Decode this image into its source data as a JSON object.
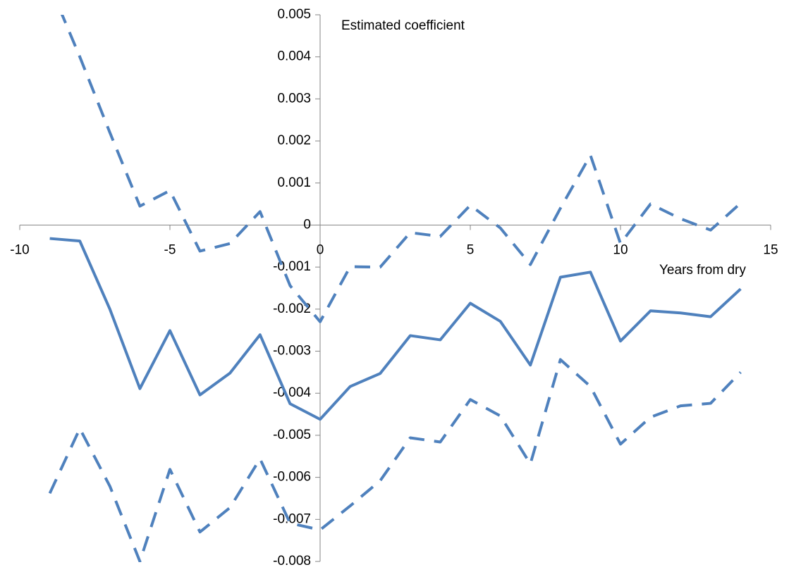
{
  "chart_data": {
    "type": "line",
    "y_label": "Estimated coefficient",
    "x_label": "Years from dry",
    "x": [
      -9,
      -8,
      -7,
      -6,
      -5,
      -4,
      -3,
      -2,
      -1,
      0,
      1,
      2,
      3,
      4,
      5,
      6,
      7,
      8,
      9,
      10,
      11,
      12,
      13,
      14
    ],
    "series": [
      {
        "color": "#4f81bd",
        "style": "solid",
        "values": [
          -0.00032,
          -0.00038,
          -0.002,
          -0.00389,
          -0.00251,
          -0.00404,
          -0.00352,
          -0.00261,
          -0.00425,
          -0.00462,
          -0.00384,
          -0.00353,
          -0.00263,
          -0.00273,
          -0.00186,
          -0.00229,
          -0.00333,
          -0.00124,
          -0.00112,
          -0.00276,
          -0.00204,
          -0.00209,
          -0.00218,
          -0.00152
        ]
      },
      {
        "color": "#4f81bd",
        "style": "dashed",
        "values": [
          0.0057,
          0.004,
          0.0022,
          0.00045,
          0.00082,
          -0.00062,
          -0.00044,
          0.00032,
          -0.00144,
          -0.0023,
          -0.00099,
          -0.001,
          -0.00018,
          -0.00027,
          0.00047,
          -7e-05,
          -0.00094,
          0.0004,
          0.00166,
          -0.00044,
          0.0005,
          0.00015,
          -0.00012,
          0.00052
        ]
      },
      {
        "color": "#4f81bd",
        "style": "dashed",
        "values": [
          -0.00638,
          -0.00484,
          -0.00621,
          -0.008,
          -0.00581,
          -0.0073,
          -0.00672,
          -0.00556,
          -0.00709,
          -0.00725,
          -0.00668,
          -0.00608,
          -0.00506,
          -0.00516,
          -0.00415,
          -0.00454,
          -0.00568,
          -0.0032,
          -0.00384,
          -0.00521,
          -0.00457,
          -0.0043,
          -0.00424,
          -0.0035
        ]
      }
    ],
    "xlim": [
      -10,
      15
    ],
    "xticks": [
      -10,
      -5,
      0,
      5,
      10,
      15
    ],
    "ylim": [
      -0.008,
      0.005
    ],
    "yticks": [
      -0.008,
      -0.007,
      -0.006,
      -0.005,
      -0.004,
      -0.003,
      -0.002,
      -0.001,
      0,
      0.001,
      0.002,
      0.003,
      0.004,
      0.005
    ]
  }
}
